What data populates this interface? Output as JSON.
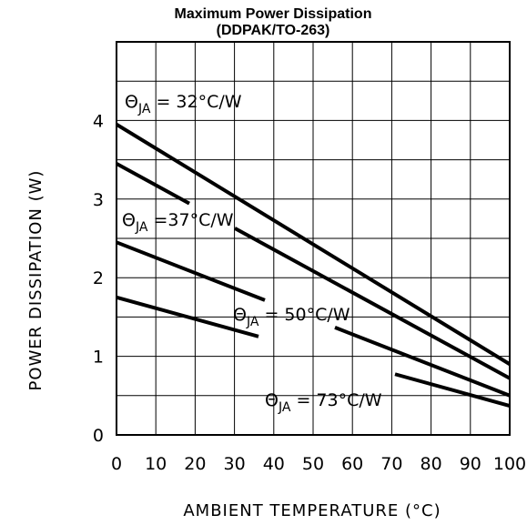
{
  "chart_data": {
    "type": "line",
    "title": "Maximum Power Dissipation",
    "subtitle": "(DDPAK/TO-263)",
    "xlabel": "AMBIENT TEMPERATURE (°C)",
    "ylabel": "POWER DISSIPATION (W)",
    "xlim": [
      0,
      100
    ],
    "ylim": [
      0,
      5
    ],
    "grid": true,
    "x_ticks": [
      "0",
      "10",
      "20",
      "30",
      "40",
      "50",
      "60",
      "70",
      "80",
      "90",
      "100"
    ],
    "y_ticks": [
      "0",
      "1",
      "2",
      "3",
      "4"
    ],
    "series": [
      {
        "name_prefix": "Θ",
        "name_sub": "JA",
        "name_suffix": " = 32°C/W",
        "x": [
          0,
          100
        ],
        "y": [
          3.95,
          0.9
        ]
      },
      {
        "name_prefix": "Θ",
        "name_sub": "JA",
        "name_suffix": " =37°C/W",
        "x": [
          0,
          100
        ],
        "y": [
          3.45,
          0.72
        ]
      },
      {
        "name_prefix": "Θ",
        "name_sub": "JA",
        "name_suffix": " = 50°C/W",
        "x": [
          0,
          100
        ],
        "y": [
          2.45,
          0.5
        ]
      },
      {
        "name_prefix": "Θ",
        "name_sub": "JA",
        "name_suffix": " = 73°C/W",
        "x": [
          0,
          100
        ],
        "y": [
          1.75,
          0.37
        ]
      }
    ]
  }
}
